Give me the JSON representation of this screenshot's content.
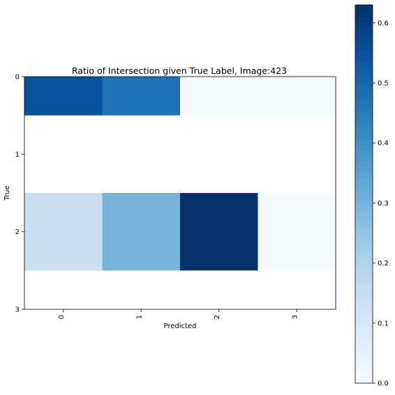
{
  "chart_data": {
    "type": "heatmap",
    "title": "Ratio of Intersection given True Label, Image:423",
    "xlabel": "Predicted",
    "ylabel": "True",
    "x_ticks": [
      "0",
      "1",
      "2",
      "3"
    ],
    "y_ticks": [
      "0",
      "1",
      "2",
      "3"
    ],
    "x_range": [
      -0.5,
      3.5
    ],
    "y_range": [
      0,
      3
    ],
    "rows": [
      {
        "y": 0,
        "values": [
          0.55,
          0.47,
          0.0,
          0.0
        ]
      },
      {
        "y": 1,
        "values": null
      },
      {
        "y": 2,
        "values": [
          0.14,
          0.3,
          0.63,
          0.0
        ]
      },
      {
        "y": 3,
        "values": null
      }
    ],
    "colormap": "Blues",
    "colorbar": {
      "min": 0.0,
      "max": 0.63,
      "ticks": [
        "0.0",
        "0.1",
        "0.2",
        "0.3",
        "0.4",
        "0.5",
        "0.6"
      ],
      "tick_values": [
        0.0,
        0.1,
        0.2,
        0.3,
        0.4,
        0.5,
        0.6
      ]
    },
    "grid": false
  }
}
